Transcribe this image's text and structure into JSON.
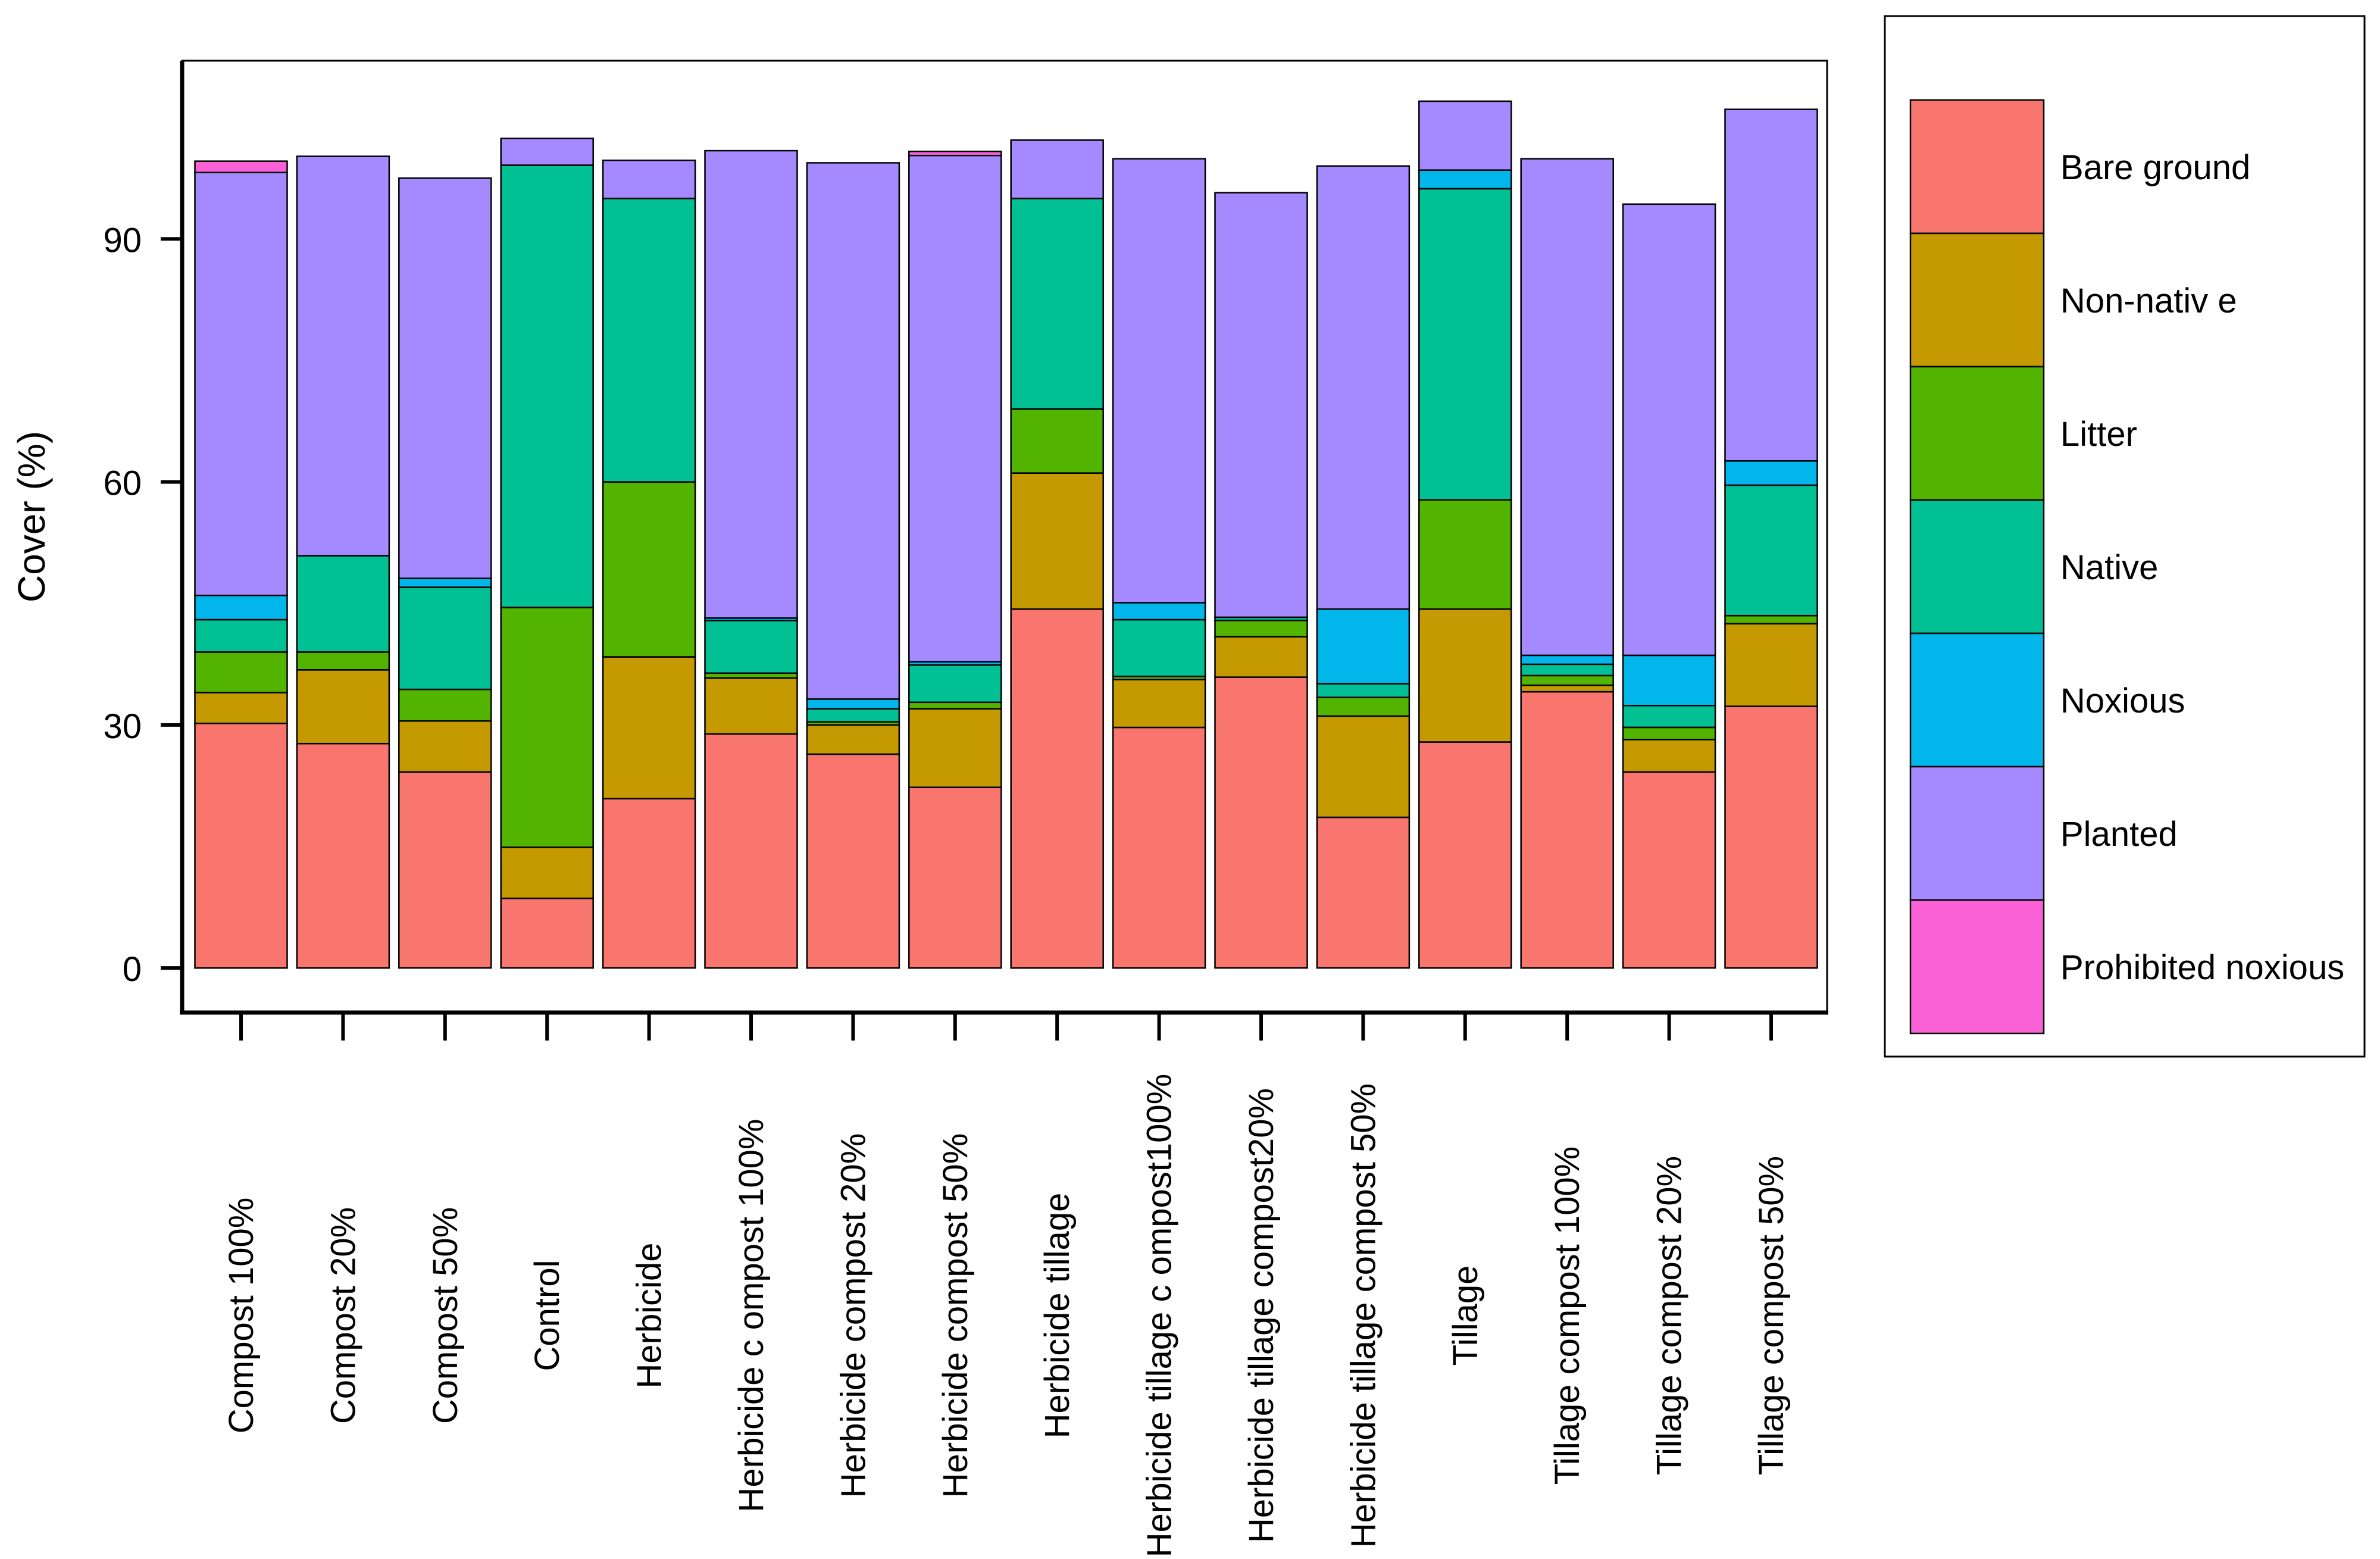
{
  "chart_data": {
    "type": "bar",
    "stacked": true,
    "title": "",
    "xlabel": "",
    "ylabel": "Cover (%)",
    "ylim": [
      -5.5,
      112
    ],
    "yticks": [
      0,
      30,
      60,
      90
    ],
    "legend_position": "right",
    "categories": [
      "Compost 100%",
      "Compost 20%",
      "Compost 50%",
      "Control",
      "Herbicide",
      "Herbicide c ompost 100%",
      "Herbicide  compost 20%",
      "Herbicide  compost 50%",
      "Herbicide  tillage",
      "Herbicide  tillage c ompost100%",
      "Herbicide  tillage  compost20%",
      "Herbicide  tillage  compost 50%",
      "Tillage",
      "Tillage  compost 100%",
      "Tillage compost 20%",
      "Tillage  compost 50%"
    ],
    "series": [
      {
        "name": "Bare ground",
        "color": "#F8766D",
        "values": [
          30.2,
          27.7,
          24.2,
          8.6,
          20.9,
          28.9,
          26.4,
          22.3,
          44.3,
          29.7,
          35.9,
          18.6,
          27.9,
          34.1,
          24.2,
          32.3
        ]
      },
      {
        "name": "Non-nativ e",
        "color": "#C49A00",
        "values": [
          3.8,
          9.1,
          6.3,
          6.3,
          17.5,
          6.9,
          3.6,
          9.7,
          16.8,
          5.9,
          5.0,
          12.5,
          16.4,
          0.8,
          4.0,
          10.2
        ]
      },
      {
        "name": "Litter",
        "color": "#53B400",
        "values": [
          5.0,
          2.2,
          3.9,
          29.6,
          21.6,
          0.6,
          0.4,
          0.8,
          7.9,
          0.4,
          2.0,
          2.3,
          13.5,
          1.2,
          1.5,
          1.0
        ]
      },
      {
        "name": "Native",
        "color": "#00C094",
        "values": [
          4.0,
          11.9,
          12.6,
          54.6,
          35.0,
          6.5,
          1.6,
          4.6,
          26.0,
          7.0,
          0.4,
          1.7,
          38.4,
          1.4,
          2.7,
          16.1
        ]
      },
      {
        "name": "Noxious",
        "color": "#00B6EB",
        "values": [
          3.0,
          0.0,
          1.1,
          0.0,
          0.0,
          0.3,
          1.2,
          0.4,
          0.0,
          2.1,
          0.0,
          9.2,
          2.3,
          1.1,
          6.2,
          3.0
        ]
      },
      {
        "name": "Planted",
        "color": "#A58AFF",
        "values": [
          52.2,
          49.3,
          49.4,
          3.3,
          4.7,
          57.7,
          66.2,
          62.5,
          7.2,
          54.8,
          52.4,
          54.7,
          8.5,
          61.3,
          55.7,
          43.4
        ]
      },
      {
        "name": "Prohibited noxious",
        "color": "#FB61D7",
        "values": [
          1.4,
          0.0,
          0.0,
          0.0,
          0.0,
          0.0,
          0.0,
          0.5,
          0.0,
          0.0,
          0.0,
          0.0,
          0.0,
          0.0,
          0.0,
          0.0
        ]
      }
    ]
  }
}
